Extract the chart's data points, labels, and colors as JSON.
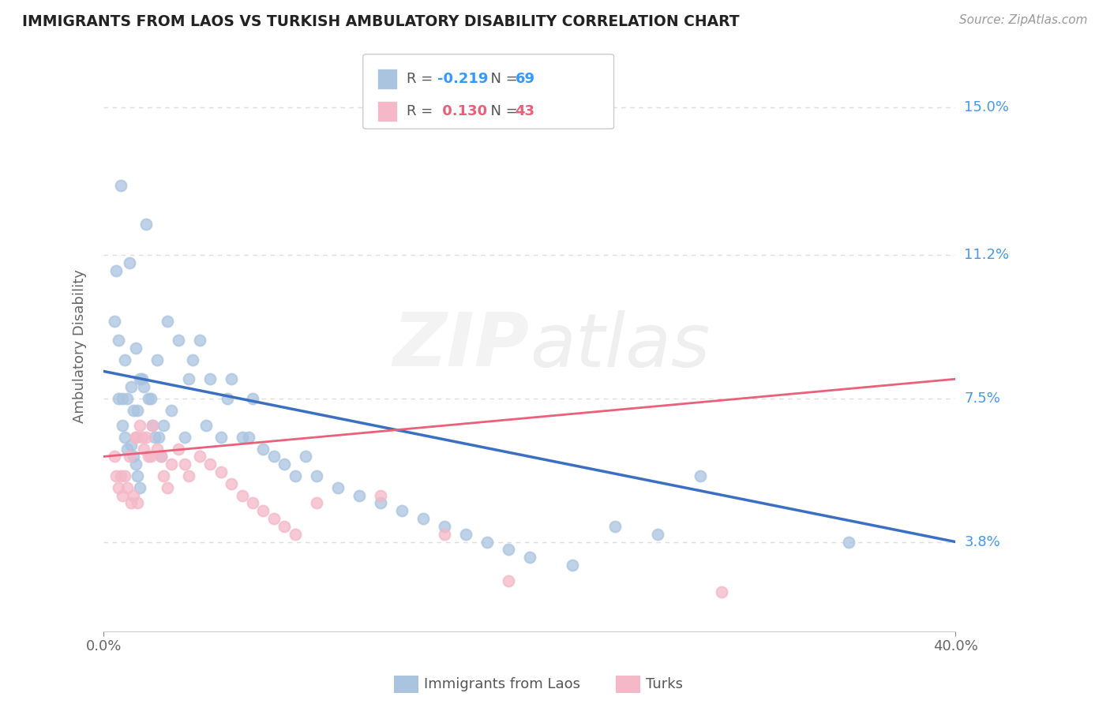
{
  "title": "IMMIGRANTS FROM LAOS VS TURKISH AMBULATORY DISABILITY CORRELATION CHART",
  "source": "Source: ZipAtlas.com",
  "ylabel": "Ambulatory Disability",
  "watermark": "ZIPatlas",
  "legend_blue_R": -0.219,
  "legend_blue_N": 69,
  "legend_pink_R": 0.13,
  "legend_pink_N": 43,
  "x_min": 0.0,
  "x_max": 0.4,
  "y_min": 0.015,
  "y_max": 0.162,
  "y_ticks": [
    0.038,
    0.075,
    0.112,
    0.15
  ],
  "y_tick_labels": [
    "3.8%",
    "7.5%",
    "11.2%",
    "15.0%"
  ],
  "x_tick_labels": [
    "0.0%",
    "40.0%"
  ],
  "background_color": "#ffffff",
  "grid_color": "#dddddd",
  "blue_color": "#aac4e0",
  "pink_color": "#f4b8c8",
  "blue_line_color": "#3a6fc4",
  "pink_line_color": "#e8607a",
  "blue_line_start_y": 0.082,
  "blue_line_end_y": 0.038,
  "pink_line_start_y": 0.06,
  "pink_line_end_y": 0.08,
  "blue_points_x": [
    0.005,
    0.006,
    0.007,
    0.007,
    0.008,
    0.009,
    0.009,
    0.01,
    0.01,
    0.011,
    0.011,
    0.012,
    0.013,
    0.013,
    0.014,
    0.014,
    0.015,
    0.015,
    0.016,
    0.016,
    0.017,
    0.017,
    0.018,
    0.019,
    0.02,
    0.021,
    0.022,
    0.023,
    0.024,
    0.025,
    0.026,
    0.027,
    0.028,
    0.03,
    0.032,
    0.035,
    0.038,
    0.04,
    0.042,
    0.045,
    0.048,
    0.05,
    0.055,
    0.058,
    0.06,
    0.065,
    0.068,
    0.07,
    0.075,
    0.08,
    0.085,
    0.09,
    0.095,
    0.1,
    0.11,
    0.12,
    0.13,
    0.14,
    0.15,
    0.16,
    0.17,
    0.18,
    0.19,
    0.2,
    0.22,
    0.24,
    0.26,
    0.35,
    0.28
  ],
  "blue_points_y": [
    0.095,
    0.108,
    0.075,
    0.09,
    0.13,
    0.068,
    0.075,
    0.065,
    0.085,
    0.062,
    0.075,
    0.11,
    0.063,
    0.078,
    0.06,
    0.072,
    0.058,
    0.088,
    0.055,
    0.072,
    0.052,
    0.08,
    0.08,
    0.078,
    0.12,
    0.075,
    0.075,
    0.068,
    0.065,
    0.085,
    0.065,
    0.06,
    0.068,
    0.095,
    0.072,
    0.09,
    0.065,
    0.08,
    0.085,
    0.09,
    0.068,
    0.08,
    0.065,
    0.075,
    0.08,
    0.065,
    0.065,
    0.075,
    0.062,
    0.06,
    0.058,
    0.055,
    0.06,
    0.055,
    0.052,
    0.05,
    0.048,
    0.046,
    0.044,
    0.042,
    0.04,
    0.038,
    0.036,
    0.034,
    0.032,
    0.042,
    0.04,
    0.038,
    0.055
  ],
  "pink_points_x": [
    0.005,
    0.006,
    0.007,
    0.008,
    0.009,
    0.01,
    0.011,
    0.012,
    0.013,
    0.014,
    0.015,
    0.015,
    0.016,
    0.017,
    0.018,
    0.019,
    0.02,
    0.021,
    0.022,
    0.023,
    0.025,
    0.027,
    0.028,
    0.03,
    0.032,
    0.035,
    0.038,
    0.04,
    0.045,
    0.05,
    0.055,
    0.06,
    0.065,
    0.07,
    0.075,
    0.08,
    0.085,
    0.09,
    0.1,
    0.13,
    0.16,
    0.29,
    0.19
  ],
  "pink_points_y": [
    0.06,
    0.055,
    0.052,
    0.055,
    0.05,
    0.055,
    0.052,
    0.06,
    0.048,
    0.05,
    0.065,
    0.065,
    0.048,
    0.068,
    0.065,
    0.062,
    0.065,
    0.06,
    0.06,
    0.068,
    0.062,
    0.06,
    0.055,
    0.052,
    0.058,
    0.062,
    0.058,
    0.055,
    0.06,
    0.058,
    0.056,
    0.053,
    0.05,
    0.048,
    0.046,
    0.044,
    0.042,
    0.04,
    0.048,
    0.05,
    0.04,
    0.025,
    0.028
  ]
}
